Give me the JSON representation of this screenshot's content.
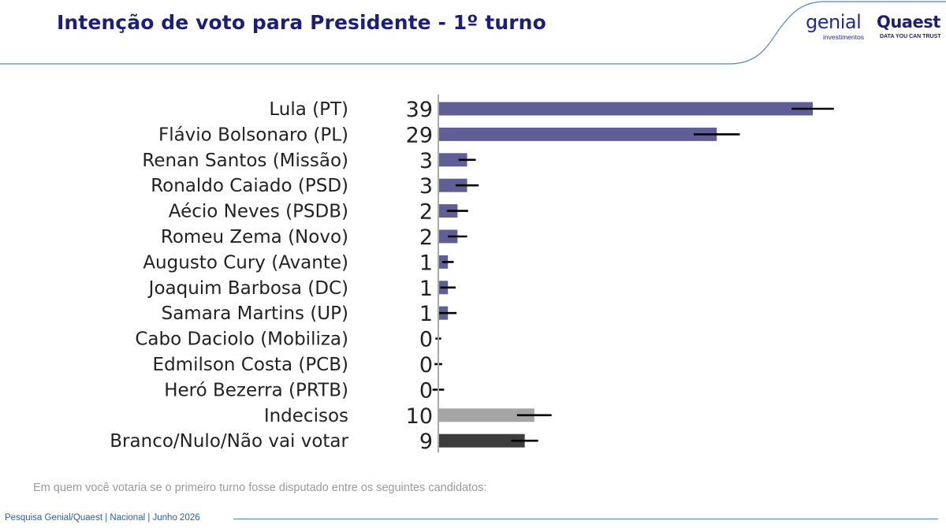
{
  "header": {
    "title": "Intenção de voto para Presidente - 1º turno",
    "logos": {
      "genial_word": "genial",
      "genial_sub": "investimentos",
      "quaest_word": "Quaest",
      "quaest_sub": "DATA YOU CAN TRUST"
    }
  },
  "note": "Em quem você votaria se o primeiro turno fosse disputado entre os seguintes candidatos:",
  "footer": "Pesquisa Genial/Quaest | Nacional | Junho 2026",
  "colors": {
    "candidate_bar": "#5f5e96",
    "undecided_bar": "#a5a5a5",
    "blank_bar": "#3d3d3d",
    "title": "#1b1f7a",
    "accent_line": "#4f86c6"
  },
  "chart_data": {
    "type": "bar",
    "orientation": "horizontal",
    "categories": [
      "Lula (PT)",
      "Flávio Bolsonaro (PL)",
      "Renan Santos (Missão)",
      "Ronaldo Caiado (PSD)",
      "Aécio Neves (PSDB)",
      "Romeu Zema (Novo)",
      "Augusto Cury (Avante)",
      "Joaquim Barbosa (DC)",
      "Samara Martins (UP)",
      "Cabo Daciolo (Mobiliza)",
      "Edmilson Costa (PCB)",
      "Heró Bezerra (PRTB)",
      "Indecisos",
      "Branco/Nulo/Não vai votar"
    ],
    "values": [
      39,
      29,
      3,
      3,
      2,
      2,
      1,
      1,
      1,
      0,
      0,
      0,
      10,
      9
    ],
    "error_bars": [
      2.2,
      2.4,
      0.9,
      1.2,
      1.1,
      1.0,
      0.6,
      0.8,
      0.9,
      0.3,
      0.4,
      0.6,
      1.8,
      1.4
    ],
    "bar_colors": [
      "#5f5e96",
      "#5f5e96",
      "#5f5e96",
      "#5f5e96",
      "#5f5e96",
      "#5f5e96",
      "#5f5e96",
      "#5f5e96",
      "#5f5e96",
      "#5f5e96",
      "#5f5e96",
      "#5f5e96",
      "#a5a5a5",
      "#3d3d3d"
    ],
    "xlim": [
      0,
      40
    ],
    "grid": false
  }
}
